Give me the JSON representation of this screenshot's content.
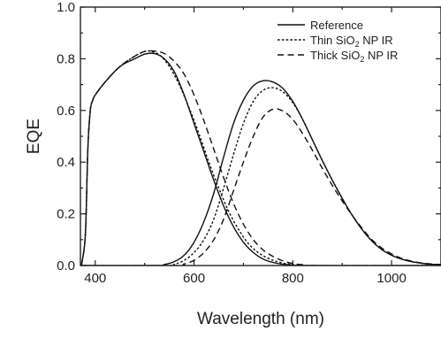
{
  "chart_data": {
    "type": "line",
    "xlabel": "Wavelength (nm)",
    "ylabel": "EQE",
    "xlim": [
      370,
      1100
    ],
    "ylim": [
      0.0,
      1.0
    ],
    "xticks": [
      400,
      600,
      800,
      1000
    ],
    "xtick_labels": [
      "400",
      "600",
      "800",
      "1000"
    ],
    "yticks": [
      0.0,
      0.2,
      0.4,
      0.6,
      0.8,
      1.0
    ],
    "ytick_labels": [
      "0.0",
      "0.2",
      "0.4",
      "0.6",
      "0.8",
      "1.0"
    ],
    "grid": false,
    "legend_position": "top-right",
    "legend": [
      {
        "text": "Reference",
        "sub": "",
        "suffix": "",
        "style": "solid"
      },
      {
        "text": "Thin SiO",
        "sub": "2",
        "suffix": " NP IR",
        "style": "dotted"
      },
      {
        "text": "Thick SiO",
        "sub": "2",
        "suffix": " NP IR",
        "style": "dashed"
      }
    ],
    "series": [
      {
        "style": "solid",
        "x": [
          372,
          380,
          385,
          390,
          395,
          400,
          420,
          450,
          480,
          500,
          520,
          540,
          560,
          580,
          600,
          620,
          640,
          660,
          680,
          700,
          720,
          740,
          760,
          780,
          800,
          820,
          1100
        ],
        "y": [
          0.0,
          0.12,
          0.45,
          0.6,
          0.64,
          0.66,
          0.71,
          0.77,
          0.8,
          0.818,
          0.82,
          0.8,
          0.75,
          0.66,
          0.55,
          0.44,
          0.33,
          0.23,
          0.15,
          0.09,
          0.05,
          0.025,
          0.012,
          0.005,
          0.002,
          0.0,
          0.0
        ]
      },
      {
        "style": "solid",
        "x": [
          370,
          520,
          540,
          560,
          580,
          600,
          620,
          640,
          660,
          680,
          700,
          720,
          740,
          760,
          780,
          800,
          820,
          840,
          860,
          880,
          900,
          920,
          940,
          960,
          980,
          1000,
          1020,
          1040,
          1060,
          1080,
          1100
        ],
        "y": [
          0.0,
          0.0,
          0.004,
          0.015,
          0.04,
          0.09,
          0.17,
          0.28,
          0.42,
          0.55,
          0.64,
          0.695,
          0.715,
          0.71,
          0.685,
          0.635,
          0.565,
          0.485,
          0.405,
          0.33,
          0.26,
          0.195,
          0.14,
          0.095,
          0.062,
          0.04,
          0.025,
          0.015,
          0.009,
          0.005,
          0.004
        ]
      },
      {
        "style": "dotted",
        "x": [
          372,
          380,
          385,
          390,
          395,
          400,
          420,
          450,
          480,
          500,
          510,
          530,
          550,
          570,
          590,
          610,
          630,
          650,
          670,
          690,
          710,
          730,
          750,
          770,
          790,
          810,
          830,
          1100
        ],
        "y": [
          0.0,
          0.12,
          0.45,
          0.6,
          0.64,
          0.66,
          0.71,
          0.77,
          0.81,
          0.828,
          0.83,
          0.815,
          0.77,
          0.7,
          0.61,
          0.51,
          0.4,
          0.3,
          0.21,
          0.14,
          0.085,
          0.05,
          0.028,
          0.014,
          0.006,
          0.002,
          0.0,
          0.0
        ]
      },
      {
        "style": "dotted",
        "x": [
          370,
          540,
          560,
          580,
          600,
          620,
          640,
          660,
          680,
          700,
          720,
          740,
          760,
          780,
          800,
          820,
          840,
          860,
          880,
          900,
          920,
          940,
          960,
          980,
          1000,
          1020,
          1040,
          1060,
          1080,
          1100
        ],
        "y": [
          0.0,
          0.0,
          0.005,
          0.02,
          0.05,
          0.1,
          0.18,
          0.3,
          0.43,
          0.55,
          0.635,
          0.678,
          0.688,
          0.672,
          0.63,
          0.565,
          0.485,
          0.405,
          0.33,
          0.26,
          0.195,
          0.14,
          0.095,
          0.062,
          0.04,
          0.025,
          0.015,
          0.009,
          0.005,
          0.004
        ]
      },
      {
        "style": "dashed",
        "x": [
          372,
          380,
          385,
          390,
          395,
          400,
          420,
          450,
          480,
          500,
          520,
          540,
          560,
          580,
          600,
          620,
          640,
          660,
          680,
          700,
          720,
          740,
          760,
          780,
          800,
          820,
          840,
          1100
        ],
        "y": [
          0.0,
          0.12,
          0.45,
          0.6,
          0.64,
          0.66,
          0.71,
          0.77,
          0.81,
          0.828,
          0.83,
          0.82,
          0.79,
          0.74,
          0.66,
          0.56,
          0.45,
          0.34,
          0.24,
          0.16,
          0.1,
          0.06,
          0.035,
          0.018,
          0.008,
          0.003,
          0.0,
          0.0
        ]
      },
      {
        "style": "dashed",
        "x": [
          370,
          560,
          580,
          600,
          620,
          640,
          660,
          680,
          700,
          720,
          740,
          760,
          780,
          800,
          820,
          840,
          860,
          880,
          900,
          920,
          940,
          960,
          980,
          1000,
          1020,
          1040,
          1060,
          1080,
          1100
        ],
        "y": [
          0.0,
          0.0,
          0.006,
          0.02,
          0.05,
          0.1,
          0.18,
          0.29,
          0.4,
          0.5,
          0.575,
          0.605,
          0.598,
          0.565,
          0.51,
          0.445,
          0.375,
          0.31,
          0.25,
          0.195,
          0.145,
          0.1,
          0.068,
          0.045,
          0.028,
          0.017,
          0.01,
          0.006,
          0.004
        ]
      }
    ]
  }
}
